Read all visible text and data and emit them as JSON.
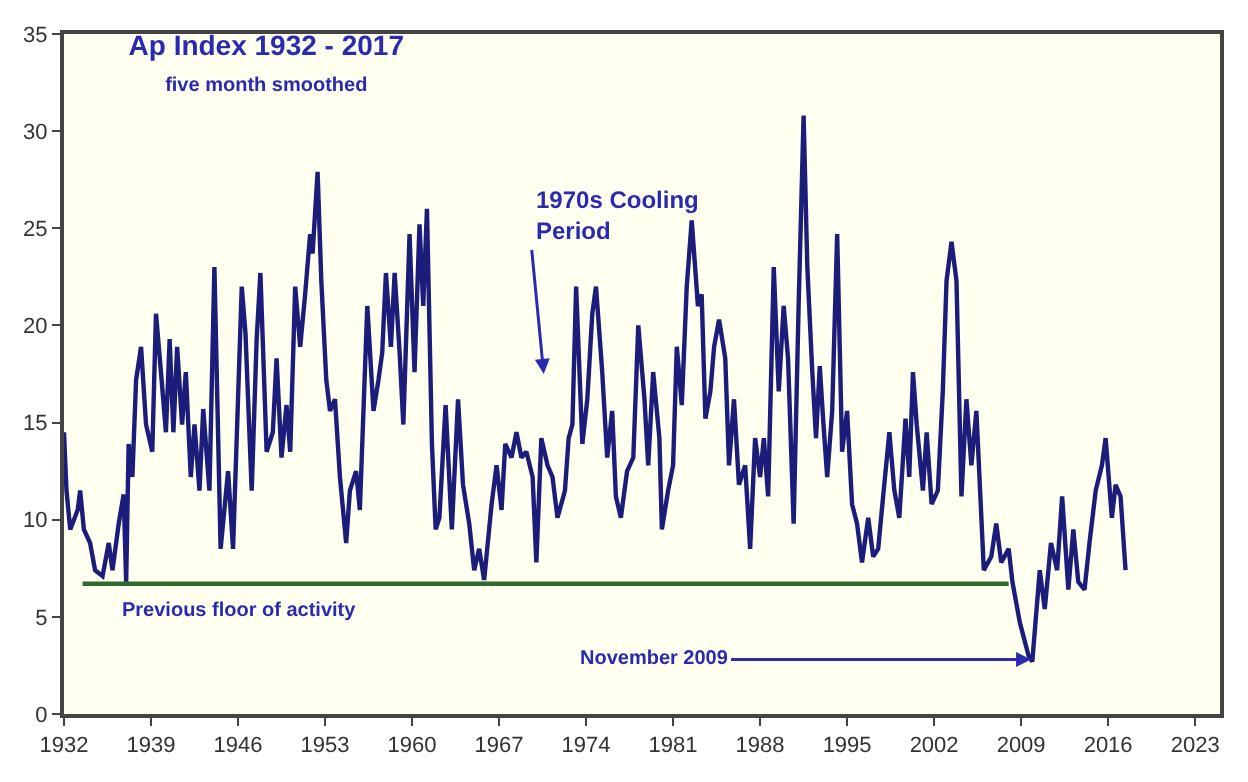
{
  "chart_data": {
    "type": "line",
    "title": "Ap Index 1932 - 2017",
    "subtitle": "five month smoothed",
    "xlim": [
      1932,
      2025
    ],
    "xticks": [
      1932,
      1939,
      1946,
      1953,
      1960,
      1967,
      1974,
      1981,
      1988,
      1995,
      2002,
      2009,
      2016,
      2023
    ],
    "ylim": [
      0,
      35
    ],
    "yticks": [
      0,
      5,
      10,
      15,
      20,
      25,
      30,
      35
    ],
    "grid": false,
    "marker": "none",
    "line_style": "solid",
    "annotations": [
      "1970s Cooling Period",
      {
        "text": "November 2009",
        "x": 2009.8,
        "y": 2.8
      },
      {
        "text": "Previous floor of activity",
        "x": 1946,
        "y": 6.7
      }
    ],
    "series": [
      {
        "color": "#1c1c7a",
        "x": [
          1932.0,
          1932.2,
          1932.5,
          1933.1,
          1933.3,
          1933.6,
          1934.1,
          1934.5,
          1935.1,
          1935.6,
          1935.9,
          1936.4,
          1936.8,
          1937.0,
          1937.2,
          1937.5,
          1937.8,
          1938.2,
          1938.6,
          1939.1,
          1939.4,
          1939.8,
          1940.2,
          1940.5,
          1940.8,
          1941.1,
          1941.5,
          1941.8,
          1942.2,
          1942.5,
          1942.9,
          1943.2,
          1943.7,
          1944.1,
          1944.6,
          1945.2,
          1945.6,
          1946.3,
          1946.6,
          1947.1,
          1947.5,
          1947.8,
          1948.3,
          1948.8,
          1949.1,
          1949.5,
          1949.9,
          1950.2,
          1950.6,
          1951.0,
          1951.4,
          1951.8,
          1952.0,
          1952.4,
          1952.7,
          1953.1,
          1953.4,
          1953.8,
          1954.2,
          1954.7,
          1955.0,
          1955.5,
          1955.8,
          1956.4,
          1956.9,
          1957.3,
          1957.6,
          1957.9,
          1958.3,
          1958.6,
          1959.0,
          1959.3,
          1959.8,
          1960.2,
          1960.6,
          1960.9,
          1961.2,
          1961.6,
          1961.9,
          1962.2,
          1962.7,
          1963.2,
          1963.7,
          1964.1,
          1964.6,
          1965.0,
          1965.4,
          1965.8,
          1966.4,
          1966.8,
          1967.2,
          1967.5,
          1968.0,
          1968.4,
          1968.8,
          1969.2,
          1969.7,
          1970.0,
          1970.4,
          1970.9,
          1971.3,
          1971.7,
          1972.3,
          1972.6,
          1972.9,
          1973.2,
          1973.7,
          1974.1,
          1974.5,
          1974.8,
          1975.3,
          1975.7,
          1976.1,
          1976.4,
          1976.8,
          1977.3,
          1977.8,
          1978.2,
          1978.7,
          1979.0,
          1979.4,
          1979.9,
          1980.1,
          1980.6,
          1981.0,
          1981.3,
          1981.7,
          1982.1,
          1982.5,
          1983.0,
          1983.3,
          1983.6,
          1984.0,
          1984.3,
          1984.7,
          1985.2,
          1985.5,
          1985.9,
          1986.3,
          1986.8,
          1987.2,
          1987.6,
          1988.0,
          1988.3,
          1988.65,
          1989.1,
          1989.5,
          1989.9,
          1990.25,
          1990.7,
          1991.1,
          1991.5,
          1991.8,
          1992.2,
          1992.5,
          1992.8,
          1993.1,
          1993.4,
          1993.8,
          1994.2,
          1994.6,
          1995.0,
          1995.4,
          1995.8,
          1996.2,
          1996.7,
          1997.1,
          1997.5,
          1997.9,
          1998.4,
          1998.8,
          1999.2,
          1999.7,
          2000.0,
          2000.3,
          2000.6,
          2001.1,
          2001.4,
          2001.8,
          2002.3,
          2002.7,
          2003.0,
          2003.4,
          2003.8,
          2004.2,
          2004.6,
          2005.0,
          2005.4,
          2005.7,
          2006.0,
          2006.6,
          2007.0,
          2007.4,
          2008.0,
          2008.3,
          2008.9,
          2009.6,
          2009.9,
          2010.5,
          2010.9,
          2011.4,
          2011.9,
          2012.3,
          2012.8,
          2013.2,
          2013.6,
          2014.1,
          2014.5,
          2015.0,
          2015.5,
          2015.8,
          2016.3,
          2016.6,
          2017.0,
          2017.4
        ],
        "values": [
          14.5,
          11.5,
          9.5,
          10.5,
          11.5,
          9.5,
          8.8,
          7.4,
          7.1,
          8.8,
          7.4,
          9.8,
          11.3,
          6.8,
          13.9,
          12.2,
          17.2,
          18.9,
          14.9,
          13.5,
          20.6,
          17.6,
          14.5,
          19.3,
          14.5,
          18.9,
          14.9,
          17.6,
          12.2,
          14.9,
          11.5,
          15.7,
          11.5,
          23.0,
          8.5,
          12.5,
          8.5,
          22.0,
          19.6,
          11.5,
          19.3,
          22.7,
          13.5,
          14.5,
          18.3,
          13.2,
          15.9,
          13.5,
          22.0,
          18.9,
          21.6,
          24.7,
          23.7,
          27.9,
          22.3,
          17.2,
          15.6,
          16.2,
          12.2,
          8.8,
          11.5,
          12.5,
          10.5,
          21.0,
          15.6,
          17.2,
          18.6,
          22.7,
          18.9,
          22.7,
          18.6,
          14.9,
          24.7,
          17.6,
          25.2,
          21.0,
          26.0,
          13.9,
          9.5,
          10.1,
          15.9,
          9.5,
          16.2,
          11.8,
          9.8,
          7.4,
          8.5,
          6.9,
          10.8,
          12.8,
          10.5,
          13.9,
          13.2,
          14.5,
          13.2,
          13.5,
          12.2,
          7.8,
          14.2,
          12.8,
          12.2,
          10.1,
          11.5,
          14.2,
          14.9,
          22.0,
          13.9,
          16.2,
          20.6,
          22.0,
          17.6,
          13.2,
          15.6,
          11.2,
          10.1,
          12.5,
          13.2,
          20.0,
          16.2,
          12.8,
          17.6,
          14.2,
          9.5,
          11.5,
          12.8,
          18.9,
          15.9,
          22.0,
          25.4,
          21.0,
          21.6,
          15.2,
          16.6,
          18.9,
          20.3,
          18.3,
          12.8,
          16.2,
          11.8,
          12.8,
          8.5,
          14.2,
          12.2,
          14.2,
          11.2,
          23.0,
          16.6,
          21.0,
          18.3,
          9.8,
          21.0,
          30.8,
          23.0,
          17.6,
          14.2,
          17.9,
          14.9,
          12.2,
          15.6,
          24.7,
          13.5,
          15.6,
          10.8,
          9.8,
          7.8,
          10.1,
          8.1,
          8.5,
          11.2,
          14.5,
          11.5,
          10.1,
          15.2,
          12.2,
          17.6,
          14.9,
          11.5,
          14.5,
          10.8,
          11.5,
          16.6,
          22.3,
          24.3,
          22.3,
          11.2,
          16.2,
          12.8,
          15.6,
          11.5,
          7.4,
          8.1,
          9.8,
          7.8,
          8.5,
          6.8,
          4.7,
          3.0,
          2.7,
          7.4,
          5.4,
          8.8,
          7.4,
          11.2,
          6.4,
          9.5,
          6.8,
          6.4,
          8.8,
          11.5,
          12.8,
          14.2,
          10.1,
          11.8,
          11.2,
          7.4
        ]
      },
      {
        "color": "#2e6b2e",
        "x": [
          1933.5,
          2008.0
        ],
        "values": [
          6.7,
          6.7
        ]
      }
    ]
  }
}
